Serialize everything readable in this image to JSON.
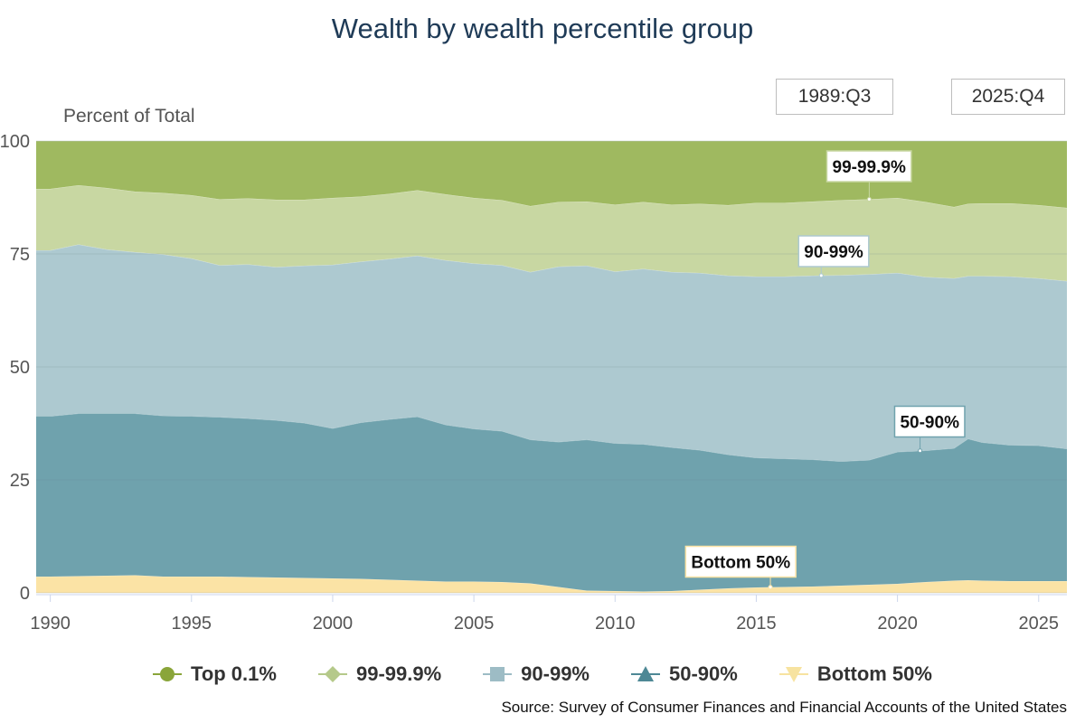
{
  "title": "Wealth by wealth percentile group",
  "date_range": {
    "start": "1989:Q3",
    "end": "2025:Q4"
  },
  "source": "Source: Survey of Consumer Finances and Financial Accounts of the United States",
  "chart_data": {
    "type": "area",
    "stacked": true,
    "title": "Wealth by wealth percentile group",
    "ylabel": "Percent of Total",
    "xlabel": "",
    "ylim": [
      0,
      100
    ],
    "yticks": [
      0,
      25,
      50,
      75,
      100
    ],
    "xlim": [
      1989.5,
      2026.0
    ],
    "xticks": [
      1990,
      1995,
      2000,
      2005,
      2010,
      2015,
      2020,
      2025
    ],
    "grid": "horizontal",
    "legend_position": "bottom",
    "x": [
      1989.5,
      1990.0,
      1991.0,
      1992.0,
      1993.0,
      1994.0,
      1995.0,
      1996.0,
      1997.0,
      1998.0,
      1999.0,
      2000.0,
      2001.0,
      2002.0,
      2003.0,
      2004.0,
      2005.0,
      2006.0,
      2007.0,
      2008.0,
      2009.0,
      2010.0,
      2011.0,
      2012.0,
      2013.0,
      2014.0,
      2015.0,
      2016.0,
      2017.0,
      2018.0,
      2019.0,
      2020.0,
      2021.0,
      2022.0,
      2022.5,
      2023.0,
      2024.0,
      2025.0,
      2026.0
    ],
    "series": [
      {
        "name": "Bottom 50%",
        "color": "#fbe3a5",
        "marker": "triangle-down",
        "values": [
          3.6,
          3.6,
          3.7,
          3.8,
          3.9,
          3.6,
          3.6,
          3.6,
          3.5,
          3.4,
          3.3,
          3.2,
          3.1,
          2.9,
          2.7,
          2.5,
          2.5,
          2.4,
          2.1,
          1.3,
          0.5,
          0.4,
          0.3,
          0.4,
          0.7,
          1.0,
          1.2,
          1.3,
          1.4,
          1.6,
          1.8,
          2.0,
          2.4,
          2.7,
          2.8,
          2.7,
          2.6,
          2.6,
          2.6
        ]
      },
      {
        "name": "50-90%",
        "color": "#6fa2ad",
        "marker": "triangle-up",
        "values": [
          35.5,
          35.5,
          36.0,
          35.9,
          35.8,
          35.6,
          35.5,
          35.3,
          35.1,
          34.8,
          34.3,
          33.2,
          34.6,
          35.5,
          36.3,
          34.7,
          33.8,
          33.4,
          31.8,
          32.1,
          33.4,
          32.7,
          32.6,
          31.8,
          30.9,
          29.6,
          28.7,
          28.4,
          28.1,
          27.5,
          27.6,
          29.2,
          29.1,
          29.3,
          31.3,
          30.6,
          30.1,
          30.0,
          29.3
        ]
      },
      {
        "name": "90-99%",
        "color": "#adc9d0",
        "marker": "square",
        "values": [
          36.7,
          36.7,
          37.4,
          36.3,
          35.7,
          35.7,
          34.9,
          33.6,
          34.1,
          33.9,
          34.8,
          36.2,
          35.6,
          35.5,
          35.6,
          36.4,
          36.6,
          36.7,
          37.1,
          38.8,
          38.5,
          38.0,
          38.8,
          38.8,
          39.2,
          39.6,
          40.1,
          40.3,
          40.7,
          41.2,
          41.1,
          39.6,
          38.4,
          37.6,
          36.0,
          36.8,
          37.3,
          37.0,
          37.1
        ]
      },
      {
        "name": "99-99.9%",
        "color": "#c8d7a2",
        "marker": "diamond",
        "values": [
          13.6,
          13.6,
          13.1,
          13.6,
          13.4,
          13.6,
          14.0,
          14.6,
          14.6,
          14.9,
          14.6,
          14.8,
          14.4,
          14.4,
          14.5,
          14.6,
          14.5,
          14.4,
          14.6,
          14.3,
          14.2,
          14.8,
          14.8,
          14.9,
          15.3,
          15.6,
          16.3,
          16.3,
          16.4,
          16.6,
          16.6,
          16.6,
          16.6,
          15.8,
          16.0,
          16.1,
          16.2,
          16.2,
          16.2
        ]
      },
      {
        "name": "Top 0.1%",
        "color": "#9fb960",
        "marker": "circle",
        "values": [
          10.6,
          10.6,
          9.8,
          10.4,
          11.2,
          11.5,
          12.0,
          12.9,
          12.7,
          13.0,
          13.0,
          12.6,
          12.3,
          11.7,
          10.9,
          11.8,
          12.6,
          13.1,
          14.4,
          13.5,
          13.4,
          14.1,
          13.5,
          14.1,
          13.9,
          14.2,
          13.7,
          13.7,
          13.4,
          13.1,
          12.9,
          12.6,
          13.5,
          14.6,
          13.9,
          13.8,
          13.8,
          14.2,
          14.8
        ]
      }
    ],
    "annotations": [
      {
        "label": "99-99.9%",
        "series": "99-99.9%",
        "x": 2019.0,
        "box_x": 2017.5,
        "box_y": 91.0
      },
      {
        "label": "90-99%",
        "series": "90-99%",
        "x": 2017.3,
        "box_x": 2016.5,
        "box_y": 72.2
      },
      {
        "label": "50-90%",
        "series": "50-90%",
        "x": 2020.8,
        "box_x": 2019.9,
        "box_y": 34.5
      },
      {
        "label": "Bottom 50%",
        "series": "Bottom 50%",
        "x": 2015.5,
        "box_x": 2012.5,
        "box_y": 3.5
      }
    ]
  }
}
